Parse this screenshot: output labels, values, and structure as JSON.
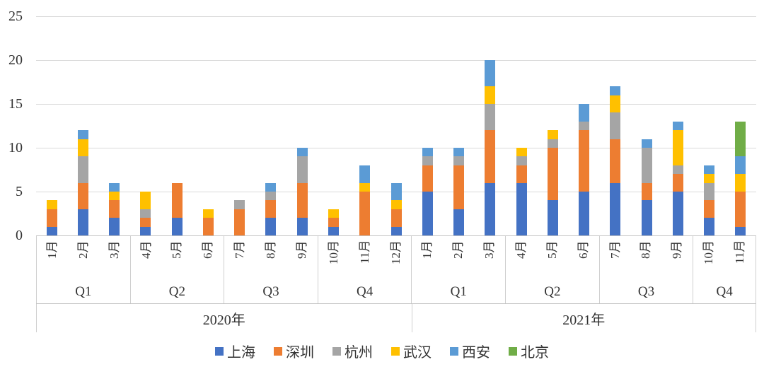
{
  "chart_data": {
    "type": "bar",
    "subtype": "stacked-column",
    "title": "",
    "xlabel": "",
    "ylabel": "",
    "ylim": [
      0,
      25
    ],
    "yticks": [
      0,
      5,
      10,
      15,
      20,
      25
    ],
    "grid": true,
    "legend_position": "bottom",
    "series_names": [
      "上海",
      "深圳",
      "杭州",
      "武汉",
      "西安",
      "北京"
    ],
    "series_colors": [
      "#4472C4",
      "#ED7D31",
      "#A5A5A5",
      "#FFC000",
      "#5B9BD5",
      "#70AD47"
    ],
    "groups": [
      {
        "year": "2020年",
        "quarters": [
          {
            "label": "Q1",
            "months": [
              {
                "label": "1月",
                "values": [
                  1,
                  2,
                  0,
                  1,
                  0,
                  0
                ],
                "total": 4
              },
              {
                "label": "2月",
                "values": [
                  3,
                  3,
                  3,
                  2,
                  1,
                  0
                ],
                "total": 12
              },
              {
                "label": "3月",
                "values": [
                  2,
                  2,
                  0,
                  1,
                  1,
                  0
                ],
                "total": 6
              }
            ]
          },
          {
            "label": "Q2",
            "months": [
              {
                "label": "4月",
                "values": [
                  1,
                  1,
                  1,
                  2,
                  0,
                  0
                ],
                "total": 5
              },
              {
                "label": "5月",
                "values": [
                  2,
                  4,
                  0,
                  0,
                  0,
                  0
                ],
                "total": 6
              },
              {
                "label": "6月",
                "values": [
                  0,
                  2,
                  0,
                  1,
                  0,
                  0
                ],
                "total": 3
              }
            ]
          },
          {
            "label": "Q3",
            "months": [
              {
                "label": "7月",
                "values": [
                  0,
                  3,
                  1,
                  0,
                  0,
                  0
                ],
                "total": 4
              },
              {
                "label": "8月",
                "values": [
                  2,
                  2,
                  1,
                  0,
                  1,
                  0
                ],
                "total": 6
              },
              {
                "label": "9月",
                "values": [
                  2,
                  4,
                  3,
                  0,
                  1,
                  0
                ],
                "total": 10
              }
            ]
          },
          {
            "label": "Q4",
            "months": [
              {
                "label": "10月",
                "values": [
                  1,
                  1,
                  0,
                  1,
                  0,
                  0
                ],
                "total": 3
              },
              {
                "label": "11月",
                "values": [
                  0,
                  5,
                  0,
                  1,
                  2,
                  0
                ],
                "total": 8
              },
              {
                "label": "12月",
                "values": [
                  1,
                  2,
                  0,
                  1,
                  2,
                  0
                ],
                "total": 6
              }
            ]
          }
        ]
      },
      {
        "year": "2021年",
        "quarters": [
          {
            "label": "Q1",
            "months": [
              {
                "label": "1月",
                "values": [
                  5,
                  3,
                  1,
                  0,
                  1,
                  0
                ],
                "total": 10
              },
              {
                "label": "2月",
                "values": [
                  3,
                  5,
                  1,
                  0,
                  1,
                  0
                ],
                "total": 10
              },
              {
                "label": "3月",
                "values": [
                  6,
                  6,
                  3,
                  2,
                  3,
                  0
                ],
                "total": 20
              }
            ]
          },
          {
            "label": "Q2",
            "months": [
              {
                "label": "4月",
                "values": [
                  6,
                  2,
                  1,
                  1,
                  0,
                  0
                ],
                "total": 10
              },
              {
                "label": "5月",
                "values": [
                  4,
                  6,
                  1,
                  1,
                  0,
                  0
                ],
                "total": 12
              },
              {
                "label": "6月",
                "values": [
                  5,
                  7,
                  1,
                  0,
                  2,
                  0
                ],
                "total": 15
              }
            ]
          },
          {
            "label": "Q3",
            "months": [
              {
                "label": "7月",
                "values": [
                  6,
                  5,
                  3,
                  2,
                  1,
                  0
                ],
                "total": 17
              },
              {
                "label": "8月",
                "values": [
                  4,
                  2,
                  4,
                  0,
                  1,
                  0
                ],
                "total": 11
              },
              {
                "label": "9月",
                "values": [
                  5,
                  2,
                  1,
                  4,
                  1,
                  0
                ],
                "total": 13
              }
            ]
          },
          {
            "label": "Q4",
            "months": [
              {
                "label": "10月",
                "values": [
                  2,
                  2,
                  2,
                  1,
                  1,
                  0
                ],
                "total": 8
              },
              {
                "label": "11月",
                "values": [
                  1,
                  4,
                  0,
                  2,
                  2,
                  4
                ],
                "total": 13
              }
            ]
          }
        ]
      }
    ]
  },
  "legend": {
    "items": [
      {
        "label": "上海",
        "color": "#4472C4"
      },
      {
        "label": "深圳",
        "color": "#ED7D31"
      },
      {
        "label": "杭州",
        "color": "#A5A5A5"
      },
      {
        "label": "武汉",
        "color": "#FFC000"
      },
      {
        "label": "西安",
        "color": "#5B9BD5"
      },
      {
        "label": "北京",
        "color": "#70AD47"
      }
    ]
  },
  "style": {
    "gridline_color": "#d9d9d9",
    "border_color": "#cfcfcf",
    "text_color": "#333333"
  }
}
